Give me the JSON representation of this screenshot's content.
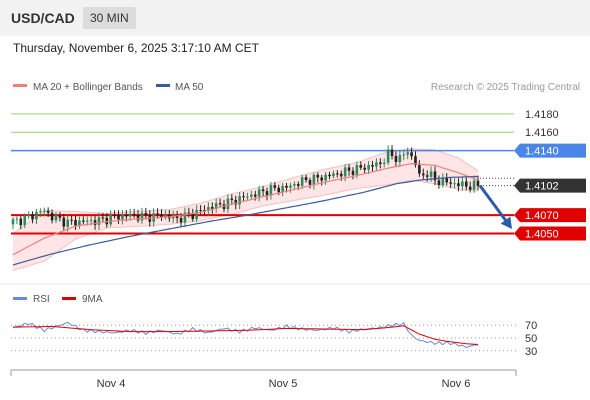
{
  "header": {
    "pair": "USD/CAD",
    "timeframe": "30 MIN"
  },
  "timestamp": "Thursday, November 6, 2025 3:17:10 AM CET",
  "legend": {
    "ma20": "MA 20 + Bollinger Bands",
    "ma50": "MA 50",
    "credit": "Research © 2025 Trading Central"
  },
  "rsi_legend": {
    "rsi": "RSI",
    "ma": "9MA"
  },
  "colors": {
    "ma20": "#f08080",
    "bands": "#ffe0e0",
    "ma50": "#3c5a9a",
    "resistance_green": "#9acd7a",
    "pivot_blue": "#4a86e8",
    "support_red": "#e00000",
    "arrow": "#2a5ba8",
    "candle_up": "#2e8b57",
    "candle_down": "#222222",
    "rsi": "#6688dd",
    "rsi_ma": "#e00000"
  },
  "chart_data": {
    "type": "candlestick",
    "x_labels": [
      "Nov 4",
      "Nov 5",
      "Nov 6"
    ],
    "levels": [
      {
        "value": 1.418,
        "label": "1.4180",
        "style": "resistance"
      },
      {
        "value": 1.416,
        "label": "1.4160",
        "style": "resistance"
      },
      {
        "value": 1.414,
        "label": "1.4140",
        "style": "pivot"
      },
      {
        "value": 1.407,
        "label": "1.4070",
        "style": "support"
      },
      {
        "value": 1.405,
        "label": "1.4050",
        "style": "support"
      }
    ],
    "last_price": {
      "value": 1.4102,
      "label": "1.4102"
    },
    "forecast": {
      "from": 1.4102,
      "to": 1.4055
    },
    "y_range": [
      1.4005,
      1.4195
    ],
    "price_path": [
      [
        0,
        1.4063
      ],
      [
        3,
        1.4066
      ],
      [
        6,
        1.4072
      ],
      [
        8,
        1.4075
      ],
      [
        10,
        1.4068
      ],
      [
        14,
        1.4062
      ],
      [
        18,
        1.4063
      ],
      [
        22,
        1.4064
      ],
      [
        26,
        1.4068
      ],
      [
        30,
        1.407
      ],
      [
        34,
        1.4068
      ],
      [
        38,
        1.407
      ],
      [
        42,
        1.4066
      ],
      [
        46,
        1.4071
      ],
      [
        50,
        1.4078
      ],
      [
        54,
        1.4082
      ],
      [
        58,
        1.4088
      ],
      [
        62,
        1.4093
      ],
      [
        66,
        1.4098
      ],
      [
        70,
        1.41
      ],
      [
        74,
        1.4107
      ],
      [
        78,
        1.411
      ],
      [
        82,
        1.4114
      ],
      [
        86,
        1.4118
      ],
      [
        90,
        1.4122
      ],
      [
        94,
        1.4126
      ],
      [
        96,
        1.4136
      ],
      [
        99,
        1.4131
      ],
      [
        101,
        1.414
      ],
      [
        103,
        1.4126
      ],
      [
        104,
        1.4112
      ],
      [
        106,
        1.4116
      ],
      [
        108,
        1.4108
      ],
      [
        112,
        1.4105
      ],
      [
        116,
        1.4102
      ],
      [
        119,
        1.4102
      ]
    ],
    "ma20_path": [
      [
        0,
        1.4027
      ],
      [
        8,
        1.4045
      ],
      [
        16,
        1.4058
      ],
      [
        24,
        1.4063
      ],
      [
        32,
        1.4066
      ],
      [
        40,
        1.4068
      ],
      [
        48,
        1.4073
      ],
      [
        56,
        1.4082
      ],
      [
        64,
        1.409
      ],
      [
        72,
        1.4098
      ],
      [
        80,
        1.4106
      ],
      [
        88,
        1.4113
      ],
      [
        96,
        1.4121
      ],
      [
        102,
        1.4126
      ],
      [
        108,
        1.4124
      ],
      [
        114,
        1.4116
      ],
      [
        119,
        1.4108
      ]
    ],
    "bb_upper_path": [
      [
        0,
        1.405
      ],
      [
        8,
        1.4075
      ],
      [
        16,
        1.4074
      ],
      [
        24,
        1.4072
      ],
      [
        32,
        1.4074
      ],
      [
        40,
        1.4076
      ],
      [
        48,
        1.4083
      ],
      [
        56,
        1.4093
      ],
      [
        64,
        1.4101
      ],
      [
        72,
        1.4111
      ],
      [
        80,
        1.412
      ],
      [
        88,
        1.4127
      ],
      [
        96,
        1.4139
      ],
      [
        102,
        1.4142
      ],
      [
        108,
        1.4141
      ],
      [
        114,
        1.4132
      ],
      [
        119,
        1.4118
      ]
    ],
    "bb_lower_path": [
      [
        0,
        1.401
      ],
      [
        8,
        1.402
      ],
      [
        16,
        1.4044
      ],
      [
        24,
        1.4056
      ],
      [
        32,
        1.4058
      ],
      [
        40,
        1.406
      ],
      [
        48,
        1.4064
      ],
      [
        56,
        1.4071
      ],
      [
        64,
        1.408
      ],
      [
        72,
        1.4086
      ],
      [
        80,
        1.4092
      ],
      [
        88,
        1.4099
      ],
      [
        96,
        1.4103
      ],
      [
        102,
        1.4108
      ],
      [
        108,
        1.4104
      ],
      [
        114,
        1.4098
      ],
      [
        119,
        1.4096
      ]
    ],
    "ma50_path": [
      [
        0,
        1.4016
      ],
      [
        10,
        1.4028
      ],
      [
        20,
        1.4038
      ],
      [
        30,
        1.4047
      ],
      [
        40,
        1.4055
      ],
      [
        50,
        1.4063
      ],
      [
        60,
        1.407
      ],
      [
        70,
        1.4078
      ],
      [
        80,
        1.4086
      ],
      [
        90,
        1.4095
      ],
      [
        98,
        1.4104
      ],
      [
        104,
        1.4108
      ],
      [
        112,
        1.4111
      ],
      [
        119,
        1.4112
      ]
    ],
    "rsi": {
      "levels": [
        70,
        50,
        30
      ],
      "rsi_path": [
        [
          0,
          66
        ],
        [
          4,
          73
        ],
        [
          8,
          62
        ],
        [
          12,
          70
        ],
        [
          14,
          74
        ],
        [
          18,
          62
        ],
        [
          22,
          60
        ],
        [
          26,
          58
        ],
        [
          30,
          62
        ],
        [
          34,
          58
        ],
        [
          38,
          62
        ],
        [
          42,
          56
        ],
        [
          46,
          64
        ],
        [
          50,
          58
        ],
        [
          54,
          65
        ],
        [
          58,
          60
        ],
        [
          62,
          66
        ],
        [
          66,
          62
        ],
        [
          70,
          68
        ],
        [
          74,
          64
        ],
        [
          78,
          62
        ],
        [
          82,
          66
        ],
        [
          86,
          60
        ],
        [
          90,
          64
        ],
        [
          94,
          66
        ],
        [
          97,
          70
        ],
        [
          100,
          72
        ],
        [
          102,
          54
        ],
        [
          104,
          46
        ],
        [
          108,
          42
        ],
        [
          112,
          42
        ],
        [
          116,
          36
        ],
        [
          119,
          40
        ]
      ],
      "ma_path": [
        [
          0,
          67
        ],
        [
          10,
          68
        ],
        [
          20,
          63
        ],
        [
          30,
          60
        ],
        [
          40,
          60
        ],
        [
          50,
          61
        ],
        [
          60,
          62
        ],
        [
          70,
          65
        ],
        [
          80,
          64
        ],
        [
          90,
          63
        ],
        [
          97,
          67
        ],
        [
          100,
          69
        ],
        [
          104,
          56
        ],
        [
          108,
          48
        ],
        [
          112,
          44
        ],
        [
          116,
          41
        ],
        [
          119,
          40
        ]
      ]
    }
  }
}
